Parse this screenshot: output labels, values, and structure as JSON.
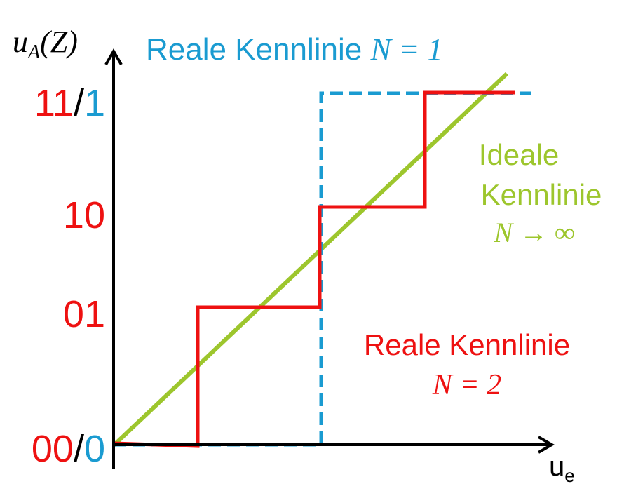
{
  "colors": {
    "axis": "#000000",
    "red": "#ee1111",
    "blue": "#1a9bd1",
    "green": "#9dc62d"
  },
  "labels": {
    "y_axis": {
      "main": "u",
      "sub": "A",
      "tail": "(Z)"
    },
    "x_axis": {
      "main": "u",
      "sub": "e"
    },
    "ticks": {
      "top": {
        "red": "11",
        "sep": "/",
        "blue": "1"
      },
      "upper_mid": "10",
      "lower_mid": "01",
      "bottom": {
        "red": "00",
        "sep": "/",
        "blue": "0"
      }
    },
    "legend_blue": {
      "text": "Reale Kennlinie ",
      "math": "N = 1"
    },
    "legend_green": {
      "line1": "Ideale",
      "line2": "Kennlinie",
      "math": "N → ∞"
    },
    "legend_red": {
      "line1": "Reale Kennlinie",
      "math": "N = 2"
    }
  },
  "curves": {
    "ideal": {
      "name": "Ideale Kennlinie",
      "input_range": [
        0,
        1
      ],
      "description": "linear"
    },
    "real_n1": {
      "name": "Reale Kennlinie N = 1",
      "output_codes": [
        "0",
        "1"
      ]
    },
    "real_n2": {
      "name": "Reale Kennlinie N = 2",
      "output_codes": [
        "00",
        "01",
        "10",
        "11"
      ]
    }
  }
}
